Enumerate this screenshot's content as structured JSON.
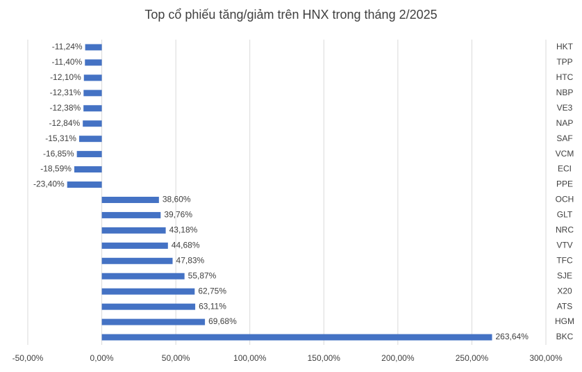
{
  "chart_data": {
    "type": "bar",
    "orientation": "horizontal",
    "title": "Top cổ phiếu tăng/giảm trên HNX trong tháng 2/2025",
    "categories": [
      "HKT",
      "TPP",
      "HTC",
      "NBP",
      "VE3",
      "NAP",
      "SAF",
      "VCM",
      "ECI",
      "PPE",
      "OCH",
      "GLT",
      "NRC",
      "VTV",
      "TFC",
      "SJE",
      "X20",
      "ATS",
      "HGM",
      "BKC"
    ],
    "values": [
      -11.24,
      -11.4,
      -12.1,
      -12.31,
      -12.38,
      -12.84,
      -15.31,
      -16.85,
      -18.59,
      -23.4,
      38.6,
      39.76,
      43.18,
      44.68,
      47.83,
      55.87,
      62.75,
      63.11,
      69.68,
      263.64
    ],
    "value_labels": [
      "-11,24%",
      "-11,40%",
      "-12,10%",
      "-12,31%",
      "-12,38%",
      "-12,84%",
      "-15,31%",
      "-16,85%",
      "-18,59%",
      "-23,40%",
      "38,60%",
      "39,76%",
      "43,18%",
      "44,68%",
      "47,83%",
      "55,87%",
      "62,75%",
      "63,11%",
      "69,68%",
      "263,64%"
    ],
    "color": "#4472c4",
    "xlim": [
      -50,
      300
    ],
    "xticks": [
      {
        "value": -50,
        "label": "-50,00%"
      },
      {
        "value": 0,
        "label": "0,00%"
      },
      {
        "value": 50,
        "label": "50,00%"
      },
      {
        "value": 100,
        "label": "100,00%"
      },
      {
        "value": 150,
        "label": "150,00%"
      },
      {
        "value": 200,
        "label": "200,00%"
      },
      {
        "value": 250,
        "label": "250,00%"
      },
      {
        "value": 300,
        "label": "300,00%"
      }
    ],
    "grid": true
  }
}
